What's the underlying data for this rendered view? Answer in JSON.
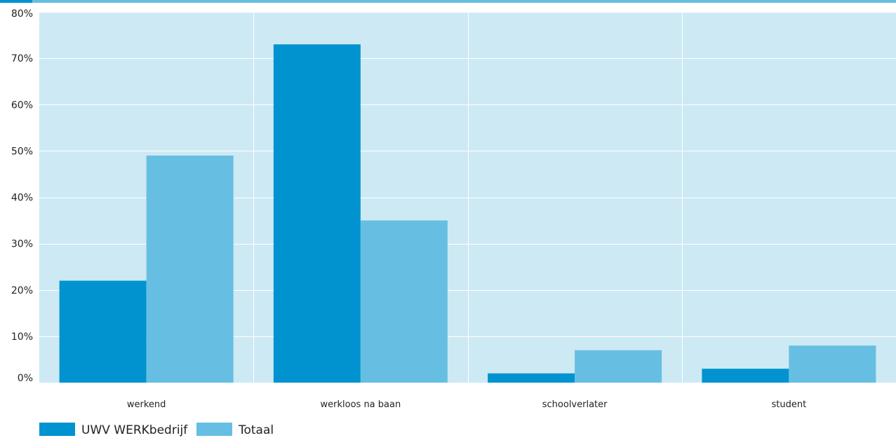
{
  "colors": {
    "background_panel": "#cde9f4",
    "grid": "#ffffff",
    "top_bar": "#66bfe2",
    "top_bar_accent": "#0093d0",
    "series_1": "#0093d0",
    "series_2": "#66bfe2"
  },
  "chart_data": {
    "type": "bar",
    "title": "",
    "xlabel": "",
    "ylabel": "",
    "categories": [
      "werkend",
      "werkloos na baan",
      "schoolverlater",
      "student"
    ],
    "series": [
      {
        "name": "UWV WERKbedrijf",
        "values": [
          22,
          73,
          2,
          3
        ]
      },
      {
        "name": "Totaal",
        "values": [
          49,
          35,
          7,
          8
        ]
      }
    ],
    "ylim": [
      0,
      80
    ],
    "yticks": [
      0,
      10,
      20,
      30,
      40,
      50,
      60,
      70,
      80
    ],
    "ytick_labels": [
      "0%",
      "10%",
      "20%",
      "30%",
      "40%",
      "50%",
      "60%",
      "70%",
      "80%"
    ],
    "grid": true,
    "legend_position": "bottom-left"
  }
}
